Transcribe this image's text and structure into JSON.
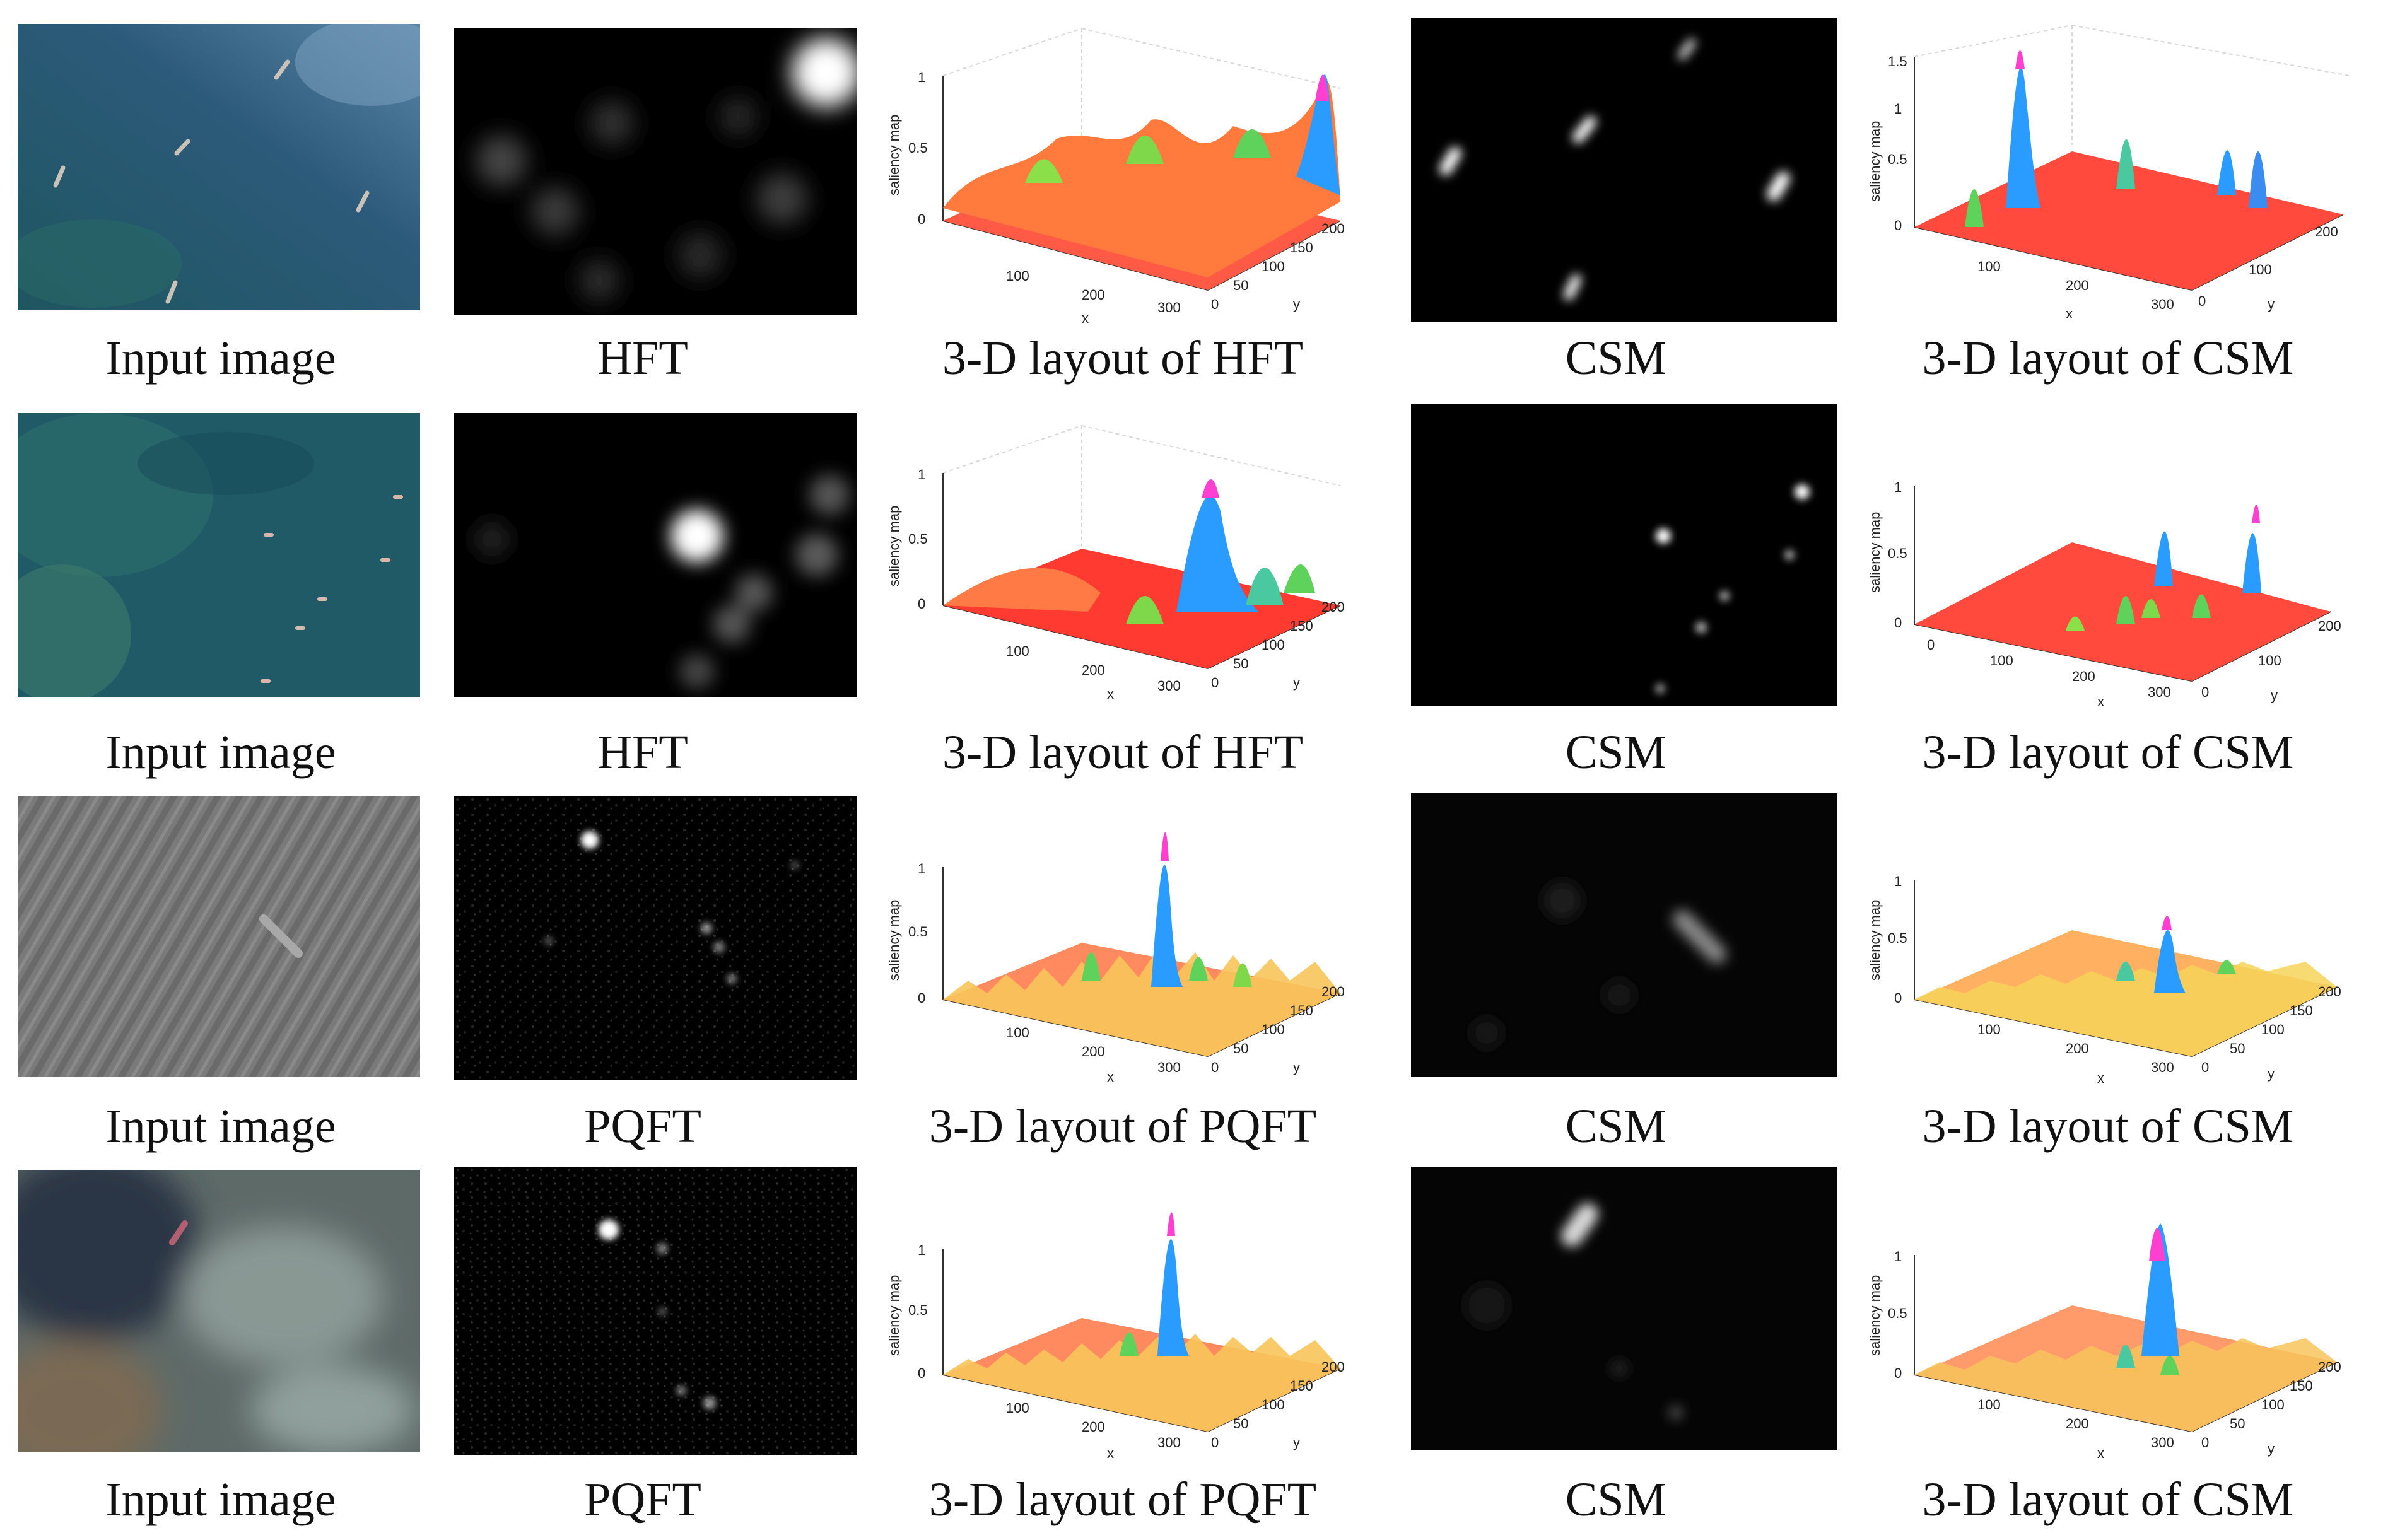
{
  "figure": {
    "rows": [
      {
        "input_caption": "Input image",
        "method_caption": "HFT",
        "method_3d_caption": "3-D layout of HFT",
        "csm_caption": "CSM",
        "csm_3d_caption": "3-D layout of CSM",
        "method_3d_axes": {
          "z_label": "saliency map",
          "z_ticks": [
            "0",
            "0.5",
            "1"
          ],
          "x_label": "x",
          "x_ticks": [
            "100",
            "200",
            "300"
          ],
          "y_label": "y",
          "y_ticks": [
            "0",
            "50",
            "100",
            "150",
            "200"
          ]
        },
        "csm_3d_axes": {
          "z_label": "saliency map",
          "z_ticks": [
            "0",
            "0.5",
            "1",
            "1.5"
          ],
          "x_label": "x",
          "x_ticks": [
            "100",
            "200",
            "300"
          ],
          "y_label": "y",
          "y_ticks": [
            "0",
            "100",
            "200"
          ]
        }
      },
      {
        "input_caption": "Input image",
        "method_caption": "HFT",
        "method_3d_caption": "3-D layout of HFT",
        "csm_caption": "CSM",
        "csm_3d_caption": "3-D layout of CSM",
        "method_3d_axes": {
          "z_label": "saliency map",
          "z_ticks": [
            "0",
            "0.5",
            "1"
          ],
          "x_label": "x",
          "x_ticks": [
            "100",
            "200",
            "300"
          ],
          "y_label": "y",
          "y_ticks": [
            "0",
            "50",
            "100",
            "150",
            "200"
          ]
        },
        "csm_3d_axes": {
          "z_label": "saliency map",
          "z_ticks": [
            "0",
            "0.5",
            "1"
          ],
          "x_label": "x",
          "x_ticks": [
            "0",
            "100",
            "200",
            "300"
          ],
          "y_label": "y",
          "y_ticks": [
            "0",
            "100",
            "200"
          ]
        }
      },
      {
        "input_caption": "Input image",
        "method_caption": "PQFT",
        "method_3d_caption": "3-D layout of PQFT",
        "csm_caption": "CSM",
        "csm_3d_caption": "3-D layout of CSM",
        "method_3d_axes": {
          "z_label": "saliency map",
          "z_ticks": [
            "0",
            "0.5",
            "1"
          ],
          "x_label": "x",
          "x_ticks": [
            "100",
            "200",
            "300"
          ],
          "y_label": "y",
          "y_ticks": [
            "0",
            "50",
            "100",
            "150",
            "200"
          ]
        },
        "csm_3d_axes": {
          "z_label": "saliency map",
          "z_ticks": [
            "0",
            "0.5",
            "1"
          ],
          "x_label": "x",
          "x_ticks": [
            "100",
            "200",
            "300"
          ],
          "y_label": "y",
          "y_ticks": [
            "0",
            "50",
            "100",
            "150",
            "200"
          ]
        }
      },
      {
        "input_caption": "Input image",
        "method_caption": "PQFT",
        "method_3d_caption": "3-D layout of PQFT",
        "csm_caption": "CSM",
        "csm_3d_caption": "3-D layout of CSM",
        "method_3d_axes": {
          "z_label": "saliency map",
          "z_ticks": [
            "0",
            "0.5",
            "1"
          ],
          "x_label": "x",
          "x_ticks": [
            "100",
            "200",
            "300"
          ],
          "y_label": "y",
          "y_ticks": [
            "0",
            "50",
            "100",
            "150",
            "200"
          ]
        },
        "csm_3d_axes": {
          "z_label": "saliency map",
          "z_ticks": [
            "0",
            "0.5",
            "1"
          ],
          "x_label": "x",
          "x_ticks": [
            "100",
            "200",
            "300"
          ],
          "y_label": "y",
          "y_ticks": [
            "0",
            "50",
            "100",
            "150",
            "200"
          ]
        }
      }
    ]
  },
  "colors": {
    "surface_low": "#ff4a3d",
    "surface_mid": "#f7e15a",
    "surface_high": "#2b6bff",
    "surface_peak": "#ff3fd0",
    "ocean_row1": "#2c5a6e",
    "ocean_row2": "#1f5a66",
    "sea_gray": "#777777",
    "sea_hazy": "#5e6a68"
  }
}
